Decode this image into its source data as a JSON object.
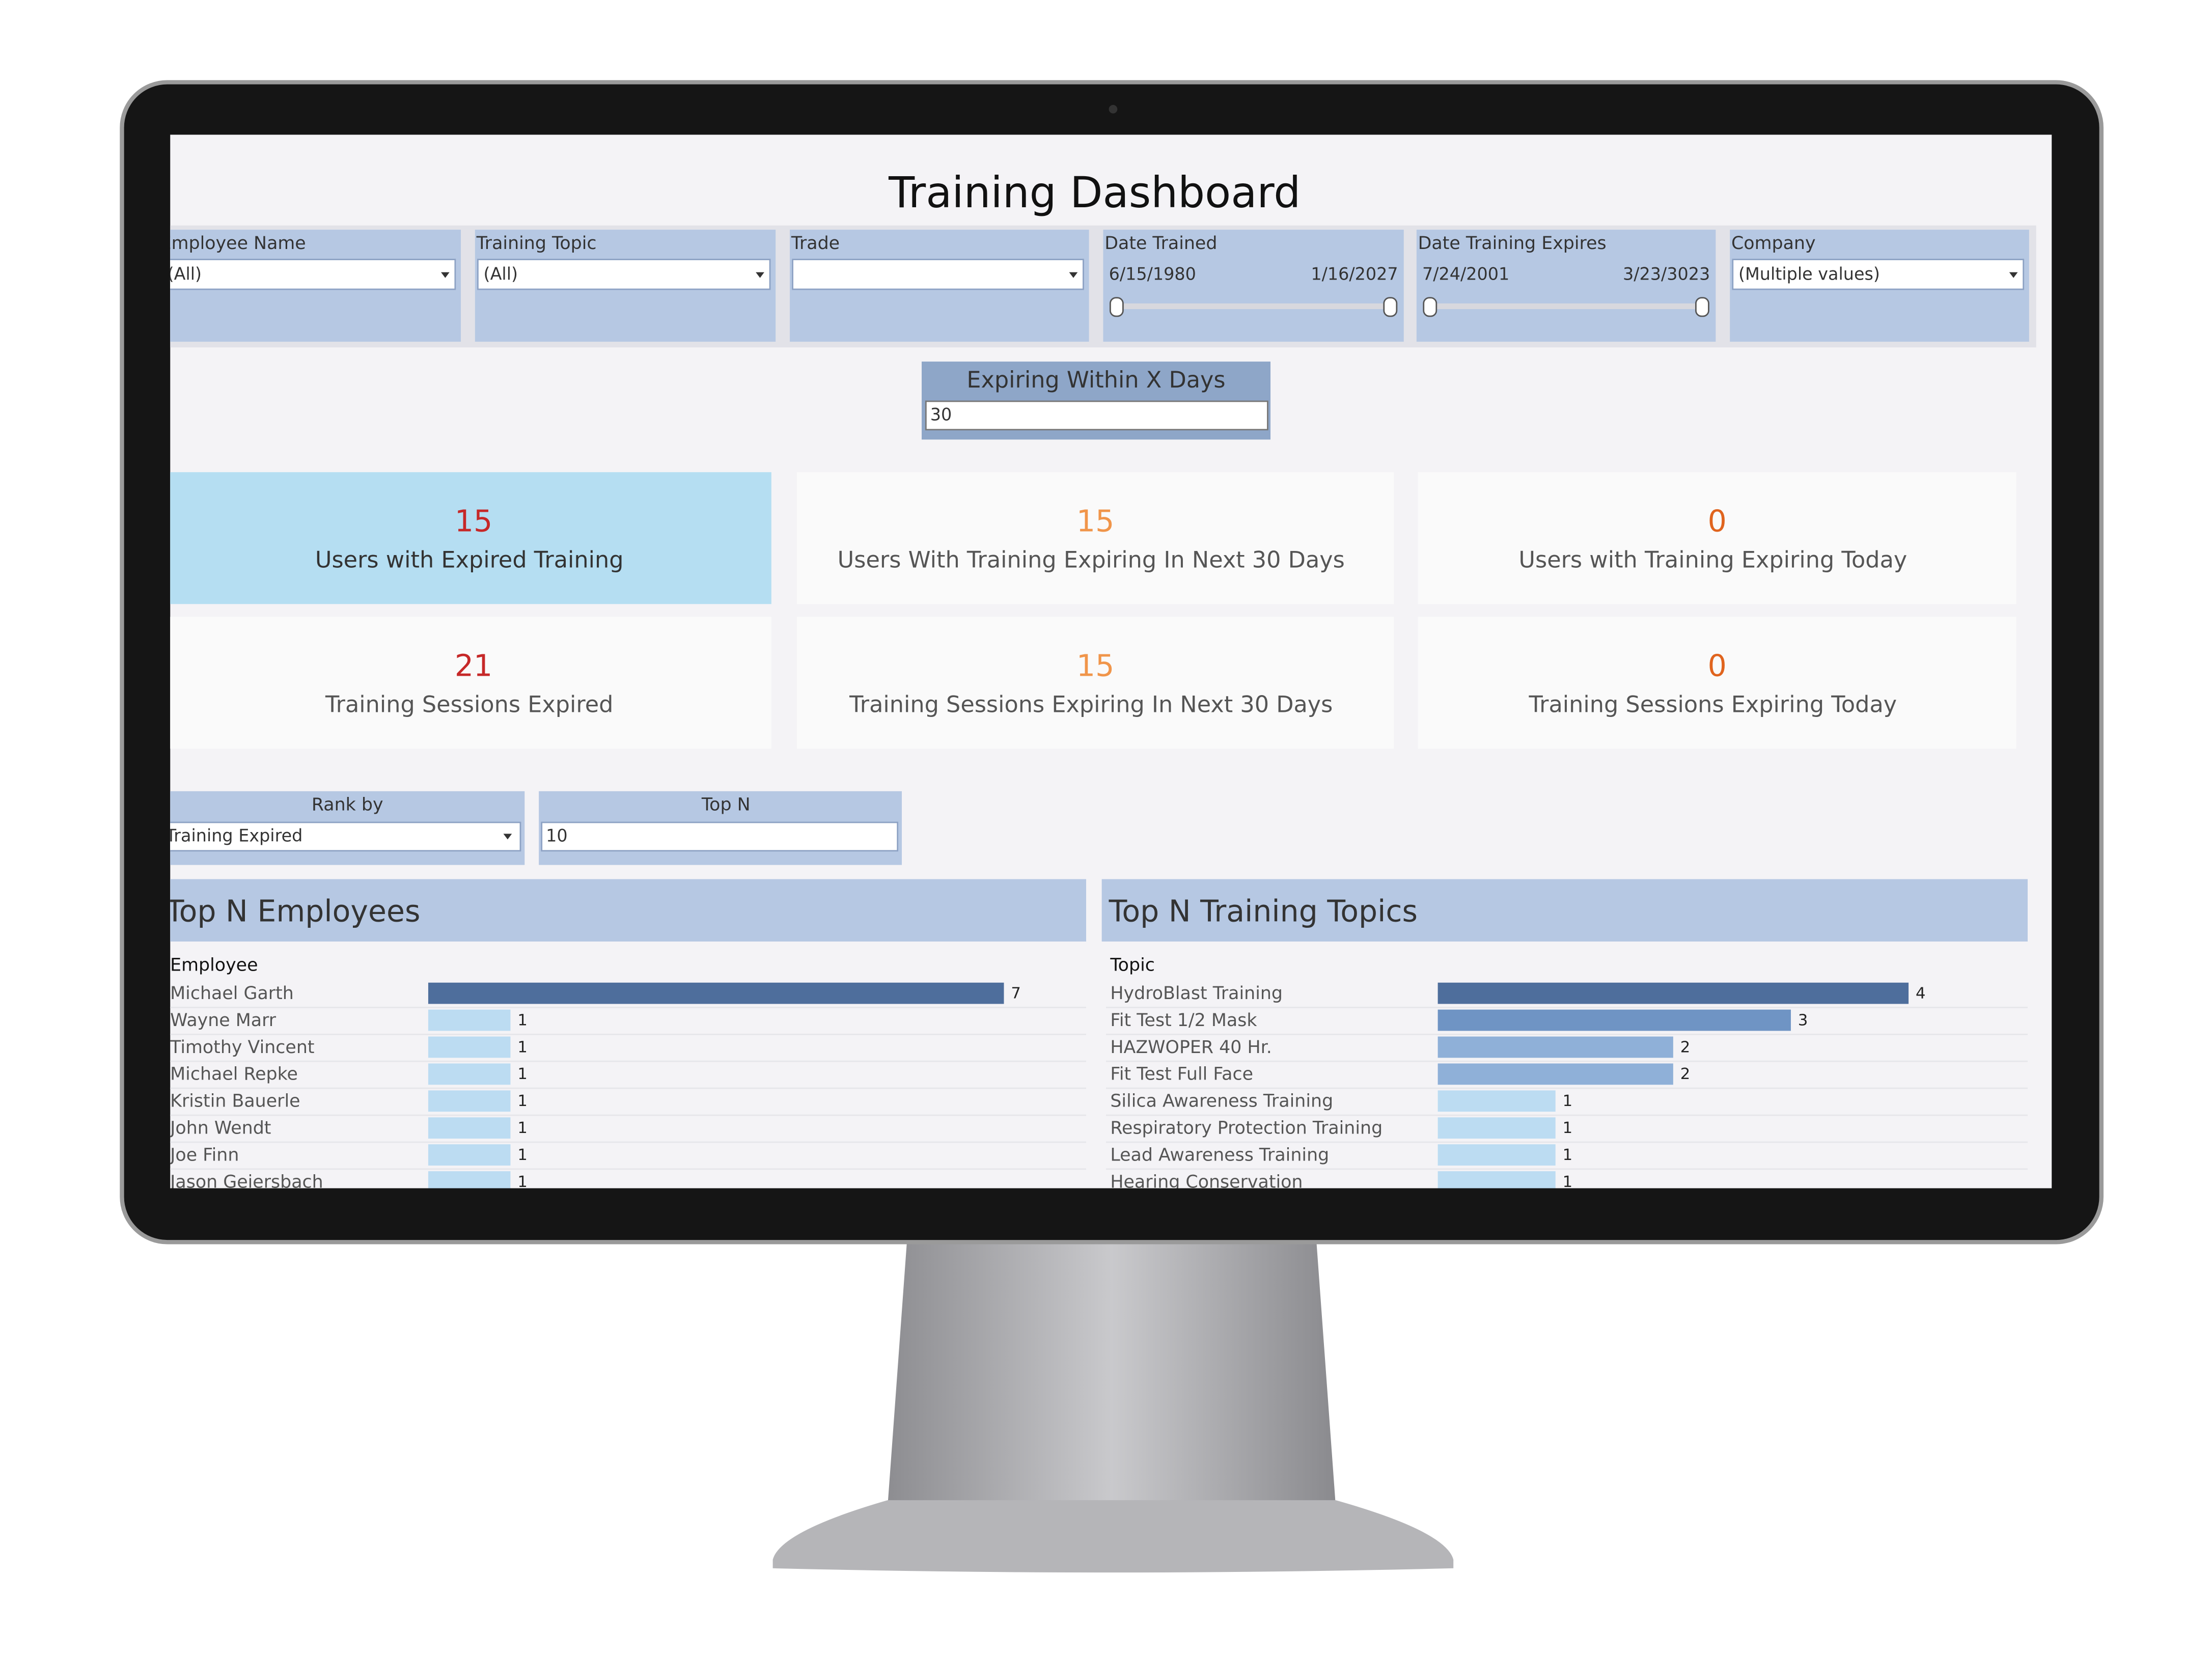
{
  "header": {
    "title": "Training Dashboard"
  },
  "filters": [
    {
      "label": "Employee Name",
      "value": "(All)"
    },
    {
      "label": "Training Topic",
      "value": "(All)"
    },
    {
      "label": "Trade"
    },
    {
      "label": "Date Trained",
      "start": "6/15/1980",
      "end": "1/16/2027"
    },
    {
      "label": "Date Training Expires",
      "start": "7/24/2001",
      "end": "3/23/3023"
    },
    {
      "label": "Company",
      "value": "(Multiple values)"
    }
  ],
  "expiring": {
    "label": "Expiring Within X Days",
    "value": 30
  },
  "kpis": [
    {
      "value": 15,
      "label": "Users with Expired Training"
    },
    {
      "value": 15,
      "label": "Users With Training Expiring In Next 30 Days"
    },
    {
      "value": 0,
      "label": "Users with Training Expiring Today"
    },
    {
      "value": 21,
      "label": "Training Sessions Expired"
    },
    {
      "value": 15,
      "label": "Training Sessions Expiring In Next 30 Days"
    },
    {
      "value": 0,
      "label": "Training Sessions Expiring Today"
    }
  ],
  "controls": {
    "rank_by": {
      "label": "Rank by",
      "value": "Training Expired"
    },
    "top_n": {
      "label": "Top N",
      "value": 10
    }
  },
  "charts": [
    {
      "title": "Top N Employees",
      "column": "Employee",
      "categories": [
        "Michael Garth",
        "Wayne Marr",
        "Timothy Vincent",
        "Michael Repke",
        "Kristin Bauerle",
        "John Wendt",
        "Joe Finn",
        "Jason Geiersbach"
      ],
      "values": [
        7,
        1,
        1,
        1,
        1,
        1,
        1,
        1
      ]
    },
    {
      "title": "Top N Training Topics",
      "column": "Topic",
      "categories": [
        "HydroBlast Training",
        "Fit Test 1/2 Mask",
        "HAZWOPER 40 Hr.",
        "Fit Test Full Face",
        "Silica Awareness Training",
        "Respiratory Protection Training",
        "Lead Awareness Training",
        "Hearing Conservation"
      ],
      "values": [
        4,
        3,
        2,
        2,
        1,
        1,
        1,
        1
      ]
    }
  ]
}
